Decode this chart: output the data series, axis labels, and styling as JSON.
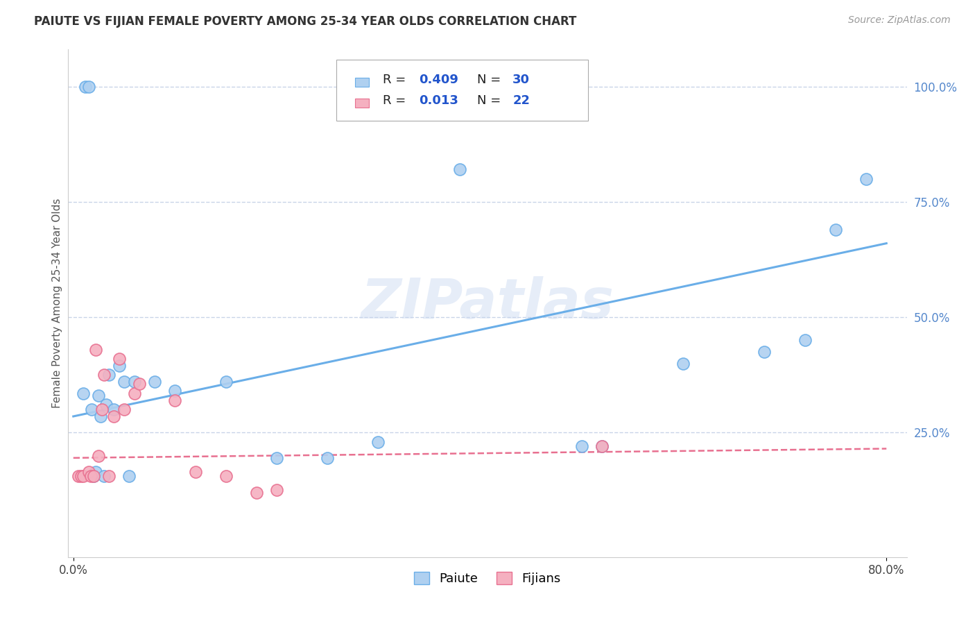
{
  "title": "PAIUTE VS FIJIAN FEMALE POVERTY AMONG 25-34 YEAR OLDS CORRELATION CHART",
  "source": "Source: ZipAtlas.com",
  "ylabel": "Female Poverty Among 25-34 Year Olds",
  "xlim": [
    -0.005,
    0.82
  ],
  "ylim": [
    -0.02,
    1.08
  ],
  "xticks": [
    0.0,
    0.8
  ],
  "xticklabels": [
    "0.0%",
    "80.0%"
  ],
  "ytick_positions": [
    0.25,
    0.5,
    0.75,
    1.0
  ],
  "yticklabels": [
    "25.0%",
    "50.0%",
    "75.0%",
    "100.0%"
  ],
  "paiute_R": "0.409",
  "paiute_N": "30",
  "fijian_R": "0.013",
  "fijian_N": "22",
  "paiute_color": "#afd0f0",
  "paiute_edge_color": "#6aaee8",
  "fijian_color": "#f5b0c0",
  "fijian_edge_color": "#e87090",
  "legend_label_paiute": "Paiute",
  "legend_label_fijian": "Fijians",
  "watermark": "ZIPatlas",
  "background_color": "#ffffff",
  "grid_color": "#c8d4e8",
  "R_N_color": "#2255cc",
  "paiute_x": [
    0.01,
    0.012,
    0.015,
    0.018,
    0.02,
    0.022,
    0.025,
    0.027,
    0.03,
    0.032,
    0.035,
    0.04,
    0.045,
    0.05,
    0.055,
    0.06,
    0.08,
    0.1,
    0.15,
    0.2,
    0.25,
    0.3,
    0.38,
    0.5,
    0.52,
    0.6,
    0.68,
    0.72,
    0.75,
    0.78
  ],
  "paiute_y": [
    0.335,
    1.0,
    1.0,
    0.3,
    0.155,
    0.165,
    0.33,
    0.285,
    0.155,
    0.31,
    0.375,
    0.3,
    0.395,
    0.36,
    0.155,
    0.36,
    0.36,
    0.34,
    0.36,
    0.195,
    0.195,
    0.23,
    0.82,
    0.22,
    0.22,
    0.4,
    0.425,
    0.45,
    0.69,
    0.8
  ],
  "fijian_x": [
    0.005,
    0.008,
    0.01,
    0.015,
    0.017,
    0.02,
    0.022,
    0.025,
    0.028,
    0.03,
    0.035,
    0.04,
    0.045,
    0.05,
    0.06,
    0.065,
    0.1,
    0.12,
    0.15,
    0.18,
    0.2,
    0.52
  ],
  "fijian_y": [
    0.155,
    0.155,
    0.155,
    0.165,
    0.155,
    0.155,
    0.43,
    0.2,
    0.3,
    0.375,
    0.155,
    0.285,
    0.41,
    0.3,
    0.335,
    0.355,
    0.32,
    0.165,
    0.155,
    0.12,
    0.125,
    0.22
  ],
  "paiute_trendline_x": [
    0.0,
    0.8
  ],
  "paiute_trendline_y": [
    0.285,
    0.66
  ],
  "fijian_trendline_x": [
    0.0,
    0.8
  ],
  "fijian_trendline_y": [
    0.195,
    0.215
  ]
}
